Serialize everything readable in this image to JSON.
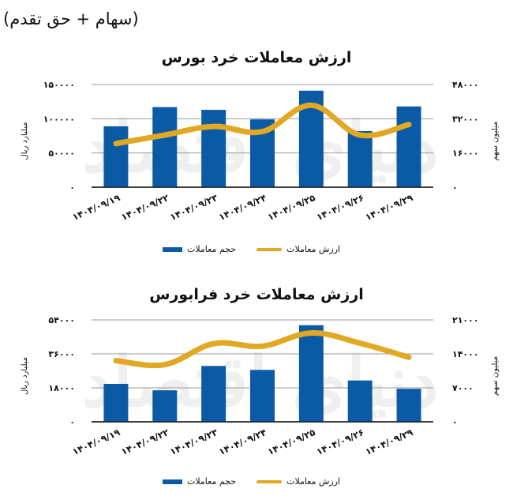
{
  "header": {
    "title": "(سهام + حق تقدم)"
  },
  "colors": {
    "bar": "#0B5AA5",
    "line": "#E0A823",
    "grid": "#9a9a9a",
    "axis": "#222222"
  },
  "legend": {
    "bar_label": "حجم معاملات",
    "line_label": "ارزش معاملات"
  },
  "watermark": "دنیای اقتصاد",
  "charts": [
    {
      "title": "ارزش معاملات خرد بورس",
      "left_axis_title": "میلیارد ریال",
      "right_axis_title": "میلیون سهم",
      "left_ticks": [
        "0",
        "50000",
        "100000",
        "150000"
      ],
      "right_ticks": [
        "0",
        "16000",
        "32000",
        "48000"
      ]
    },
    {
      "title": "ارزش معاملات خرد فرابورس",
      "left_axis_title": "میلیارد ریال",
      "right_axis_title": "میلیون سهم",
      "left_ticks": [
        "0",
        "18000",
        "36000",
        "54000"
      ],
      "right_ticks": [
        "0",
        "7000",
        "14000",
        "21000"
      ]
    }
  ],
  "chart_data": [
    {
      "type": "bar",
      "title": "ارزش معاملات خرد بورس",
      "subtitle": "(سهام + حق تقدم)",
      "categories": [
        "1404/09/19",
        "1404/09/22",
        "1404/09/23",
        "1404/09/24",
        "1404/09/25",
        "1404/09/26",
        "1404/09/29"
      ],
      "category_labels_fa": [
        "۱۴۰۴/۰۹/۱۹",
        "۱۴۰۴/۰۹/۲۲",
        "۱۴۰۴/۰۹/۲۳",
        "۱۴۰۴/۰۹/۲۴",
        "۱۴۰۴/۰۹/۲۵",
        "۱۴۰۴/۰۹/۲۶",
        "۱۴۰۴/۰۹/۲۹"
      ],
      "series": [
        {
          "name": "حجم معاملات",
          "type": "bar",
          "axis": "left",
          "color": "#0B5AA5",
          "values": [
            89000,
            117000,
            113000,
            99000,
            141000,
            82000,
            118000
          ]
        },
        {
          "name": "ارزش معاملات",
          "type": "line",
          "axis": "right",
          "color": "#E0A823",
          "values": [
            20400,
            24400,
            28400,
            26000,
            38300,
            24400,
            29300
          ]
        }
      ],
      "ylabel": "میلیارد ریال",
      "ylim": [
        0,
        150000
      ],
      "y2label": "میلیون سهم",
      "y2lim": [
        0,
        48000
      ],
      "grid": true,
      "legend_position": "bottom"
    },
    {
      "type": "bar",
      "title": "ارزش معاملات خرد فرابورس",
      "categories": [
        "1404/09/19",
        "1404/09/22",
        "1404/09/23",
        "1404/09/24",
        "1404/09/25",
        "1404/09/26",
        "1404/09/29"
      ],
      "category_labels_fa": [
        "۱۴۰۴/۰۹/۱۹",
        "۱۴۰۴/۰۹/۲۲",
        "۱۴۰۴/۰۹/۲۳",
        "۱۴۰۴/۰۹/۲۴",
        "۱۴۰۴/۰۹/۲۵",
        "۱۴۰۴/۰۹/۲۶",
        "۱۴۰۴/۰۹/۲۹"
      ],
      "series": [
        {
          "name": "حجم معاملات",
          "type": "bar",
          "axis": "left",
          "color": "#0B5AA5",
          "values": [
            20100,
            16700,
            29600,
            27500,
            51200,
            21900,
            17500
          ]
        },
        {
          "name": "ارزش معاملات",
          "type": "line",
          "axis": "right",
          "color": "#E0A823",
          "values": [
            12600,
            11800,
            16100,
            15600,
            18300,
            16200,
            13300
          ]
        }
      ],
      "ylabel": "میلیارد ریال",
      "ylim": [
        0,
        54000
      ],
      "y2label": "میلیون سهم",
      "y2lim": [
        0,
        21000
      ],
      "grid": true,
      "legend_position": "bottom"
    }
  ]
}
